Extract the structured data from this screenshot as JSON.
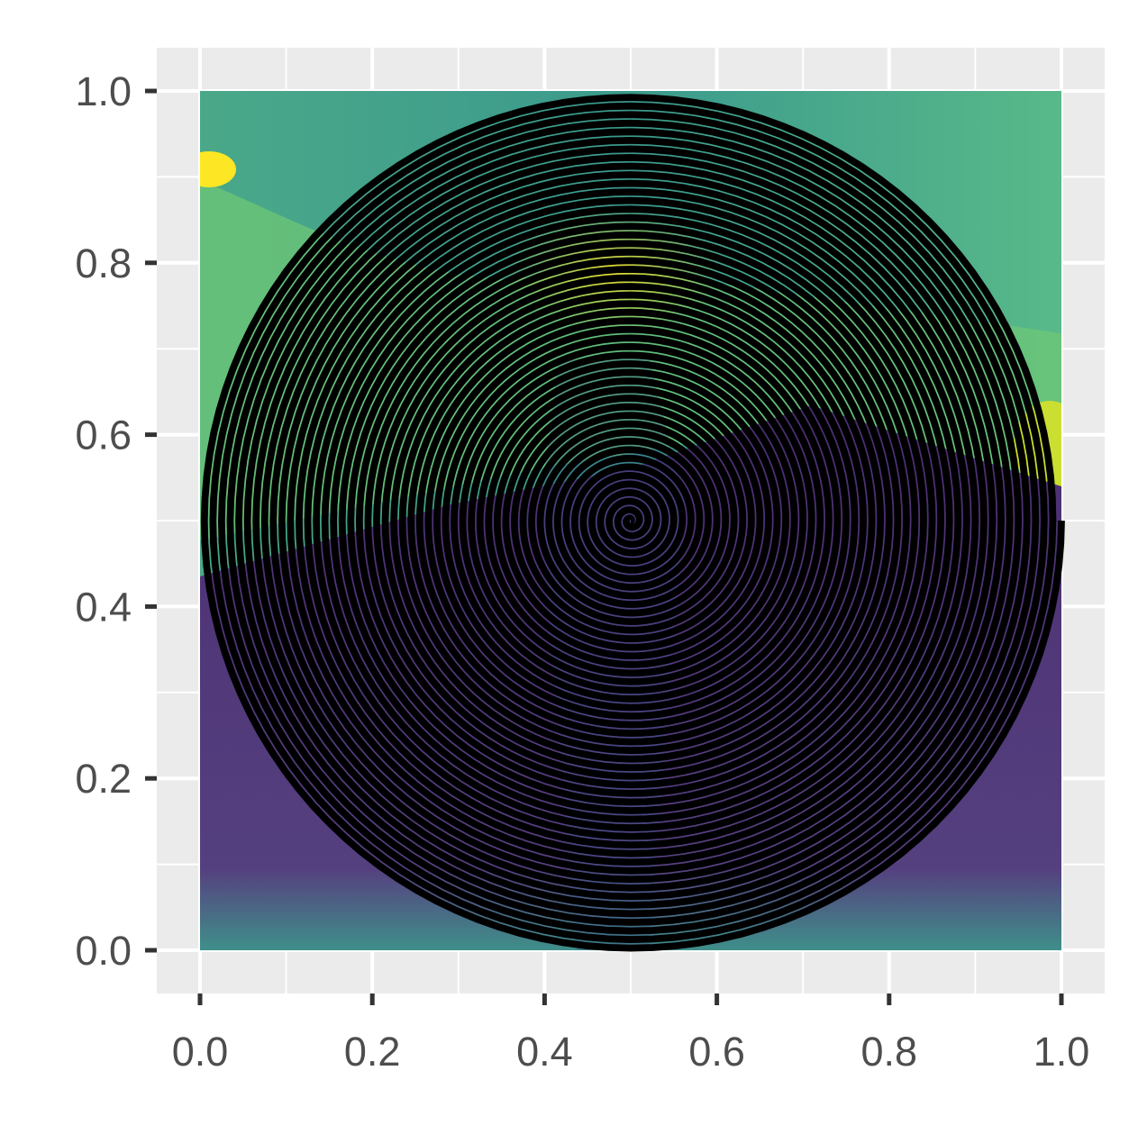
{
  "chart_data": {
    "type": "other",
    "description_kind": "spiral line drawn over a viridis-colored raster image",
    "title": "",
    "xlabel": "",
    "ylabel": "",
    "xlim": [
      -0.05,
      1.05
    ],
    "ylim": [
      -0.05,
      1.05
    ],
    "x_ticks": [
      0.0,
      0.2,
      0.4,
      0.6,
      0.8,
      1.0
    ],
    "x_tick_labels": [
      "0.0",
      "0.2",
      "0.4",
      "0.6",
      "0.8",
      "1.0"
    ],
    "y_ticks": [
      0.0,
      0.2,
      0.4,
      0.6,
      0.8,
      1.0
    ],
    "y_tick_labels": [
      "0.0",
      "0.2",
      "0.4",
      "0.6",
      "0.8",
      "1.0"
    ],
    "grid": true,
    "legend": "none",
    "raster_extent": {
      "x": [
        0,
        1
      ],
      "y": [
        0,
        1
      ]
    },
    "spiral": {
      "center": [
        0.5,
        0.5
      ],
      "outer_radius": 0.5,
      "turns": 50,
      "color": "#000000"
    },
    "colors": {
      "panel_background": "#ebebeb",
      "grid": "#ffffff",
      "tick_text": "#4d4d4d",
      "tick_mark": "#333333",
      "viridis": [
        "#440154",
        "#46327e",
        "#365c8d",
        "#277f8e",
        "#1fa187",
        "#4ac16d",
        "#a0da39",
        "#fde725"
      ]
    }
  }
}
